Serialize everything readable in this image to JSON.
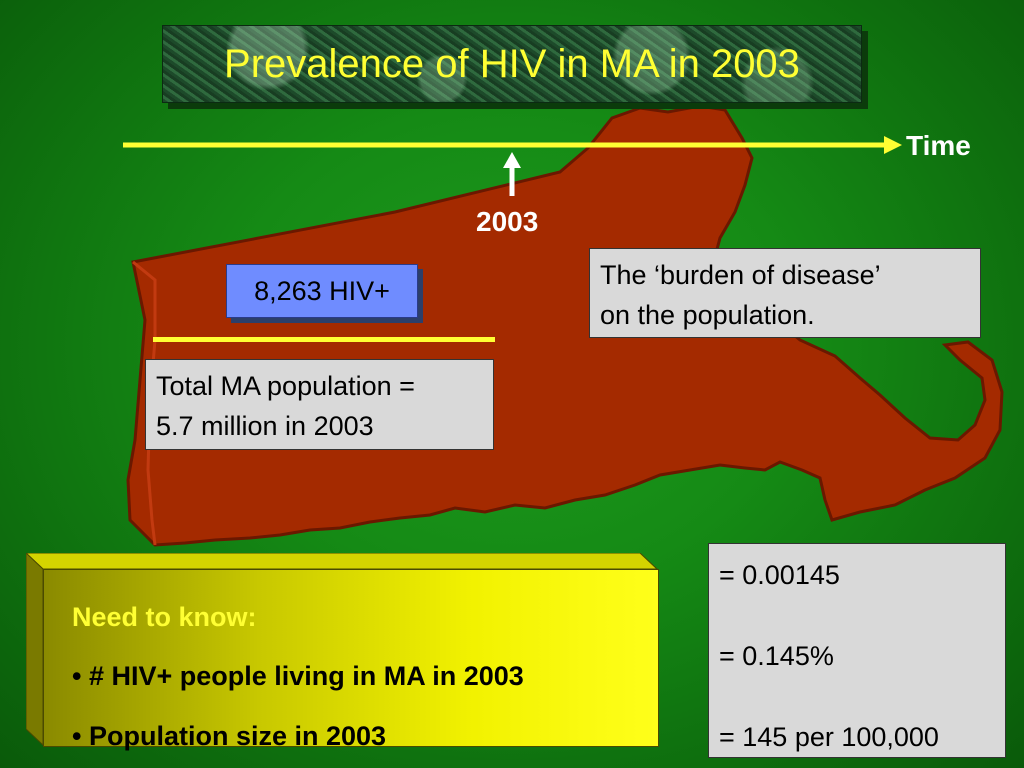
{
  "title": "Prevalence of HIV in MA in 2003",
  "timeline": {
    "axis_label": "Time",
    "marker_label": "2003"
  },
  "fraction": {
    "numerator": "8,263 HIV+",
    "denominator_line1": "Total MA population =",
    "denominator_line2": "5.7 million in 2003"
  },
  "burden_note": {
    "line1": "The ‘burden of disease’",
    "line2": "on the population."
  },
  "need_to_know": {
    "heading": "Need to know:",
    "bullets": [
      "• # HIV+ people living in MA in 2003",
      "• Population size in 2003"
    ]
  },
  "results": [
    "= 0.00145",
    "= 0.145%",
    "= 145 per 100,000"
  ],
  "colors": {
    "background": "#148a14",
    "state_map": "#a42a00",
    "title_text": "#ffff33",
    "timeline": "#ffff33",
    "numerator_box": "#6f8cff",
    "note_box": "#d9d9d9",
    "need_box": "#e6e600"
  }
}
